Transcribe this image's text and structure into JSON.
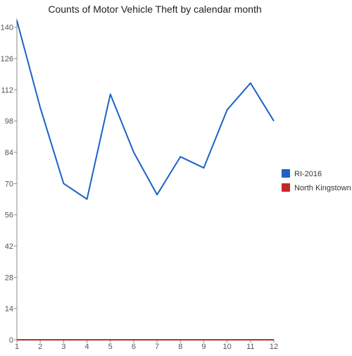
{
  "chart_data": {
    "type": "line",
    "title": "Counts of Motor Vehicle Theft by calendar month",
    "xlabel": "",
    "ylabel": "",
    "x": [
      1,
      2,
      3,
      4,
      5,
      6,
      7,
      8,
      9,
      10,
      11,
      12
    ],
    "x_ticks": [
      "1",
      "2",
      "3",
      "4",
      "5",
      "6",
      "7",
      "8",
      "9",
      "10",
      "11",
      "12"
    ],
    "y_ticks": [
      "0",
      "14",
      "28",
      "42",
      "56",
      "70",
      "84",
      "98",
      "112",
      "126",
      "140"
    ],
    "ylim": [
      0,
      144
    ],
    "grid": false,
    "legend_position": "right",
    "series": [
      {
        "name": "RI-2016",
        "color": "#1a63c7",
        "values": [
          143,
          104,
          70,
          63,
          110,
          84,
          65,
          82,
          77,
          103,
          115,
          98
        ]
      },
      {
        "name": "North Kingstown",
        "color": "#c62828",
        "values": [
          0,
          0,
          0,
          0,
          0,
          0,
          0,
          0,
          0,
          0,
          0,
          0
        ]
      }
    ]
  }
}
